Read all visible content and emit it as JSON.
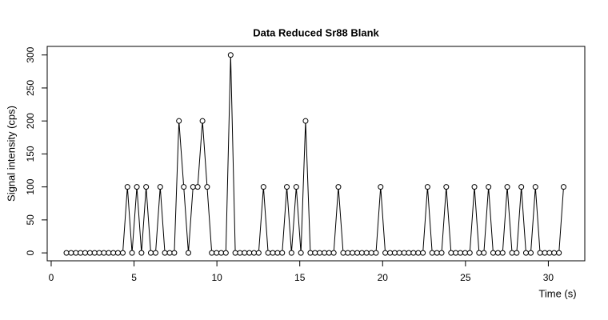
{
  "chart_data": {
    "type": "line",
    "title": "Data Reduced Sr88 Blank",
    "xlabel": "Time (s)",
    "ylabel": "Signal intensity (cps)",
    "x": [
      0.92,
      1.2,
      1.49,
      1.77,
      2.05,
      2.34,
      2.62,
      2.9,
      3.18,
      3.47,
      3.75,
      4.03,
      4.32,
      4.6,
      4.88,
      5.17,
      5.45,
      5.73,
      6.01,
      6.3,
      6.58,
      6.86,
      7.15,
      7.43,
      7.71,
      8.0,
      8.28,
      8.56,
      8.84,
      9.13,
      9.41,
      9.69,
      9.98,
      10.26,
      10.54,
      10.83,
      11.11,
      11.39,
      11.67,
      11.96,
      12.24,
      12.52,
      12.81,
      13.09,
      13.37,
      13.66,
      13.94,
      14.22,
      14.5,
      14.79,
      15.07,
      15.35,
      15.64,
      15.92,
      16.2,
      16.49,
      16.77,
      17.05,
      17.33,
      17.62,
      17.9,
      18.18,
      18.47,
      18.75,
      19.03,
      19.32,
      19.6,
      19.88,
      20.16,
      20.45,
      20.73,
      21.01,
      21.3,
      21.58,
      21.86,
      22.15,
      22.43,
      22.71,
      22.99,
      23.28,
      23.56,
      23.84,
      24.13,
      24.41,
      24.69,
      24.98,
      25.26,
      25.54,
      25.82,
      26.11,
      26.39,
      26.67,
      26.96,
      27.24,
      27.52,
      27.81,
      28.09,
      28.37,
      28.65,
      28.94,
      29.22,
      29.5,
      29.79,
      30.07,
      30.35,
      30.64,
      30.92
    ],
    "series": [
      {
        "color": "#000000",
        "values": [
          0,
          0,
          0,
          0,
          0,
          0,
          0,
          0,
          0,
          0,
          0,
          0,
          0,
          100,
          0,
          100,
          0,
          100,
          0,
          0,
          100,
          0,
          0,
          0,
          200,
          100,
          0,
          100,
          100,
          200,
          100,
          0,
          0,
          0,
          0,
          300,
          0,
          0,
          0,
          0,
          0,
          0,
          100,
          0,
          0,
          0,
          0,
          100,
          0,
          100,
          0,
          200,
          0,
          0,
          0,
          0,
          0,
          0,
          100,
          0,
          0,
          0,
          0,
          0,
          0,
          0,
          0,
          100,
          0,
          0,
          0,
          0,
          0,
          0,
          0,
          0,
          0,
          100,
          0,
          0,
          0,
          100,
          0,
          0,
          0,
          0,
          0,
          100,
          0,
          0,
          100,
          0,
          0,
          0,
          100,
          0,
          0,
          100,
          0,
          0,
          100,
          0,
          0,
          0,
          0,
          0,
          100
        ]
      }
    ],
    "xlim": [
      -0.24,
      32.2
    ],
    "ylim": [
      -12,
      313
    ],
    "xticks": [
      0,
      5,
      10,
      15,
      20,
      25,
      30
    ],
    "yticks": [
      0,
      50,
      100,
      150,
      200,
      250,
      300
    ]
  }
}
